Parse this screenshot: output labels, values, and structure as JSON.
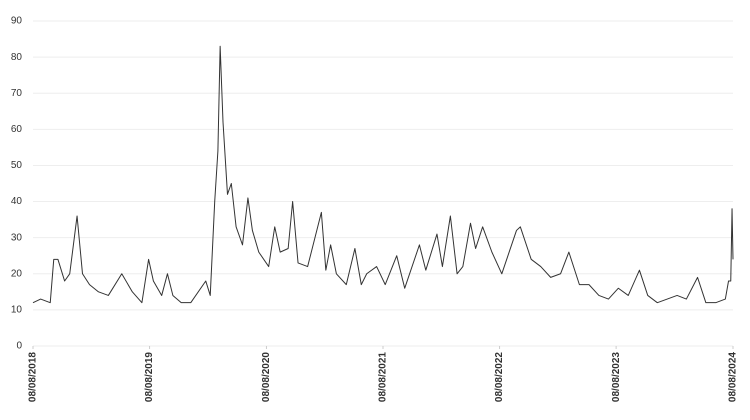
{
  "chart_data": {
    "type": "line",
    "x": [
      "2018-08-08",
      "2018-09-01",
      "2018-10-01",
      "2018-10-12",
      "2018-10-25",
      "2018-11-15",
      "2018-12-01",
      "2018-12-24",
      "2019-01-10",
      "2019-02-01",
      "2019-03-01",
      "2019-04-01",
      "2019-05-13",
      "2019-06-15",
      "2019-07-15",
      "2019-08-05",
      "2019-08-20",
      "2019-09-15",
      "2019-10-03",
      "2019-10-20",
      "2019-11-15",
      "2019-12-15",
      "2020-01-31",
      "2020-02-14",
      "2020-02-28",
      "2020-03-09",
      "2020-03-16",
      "2020-03-25",
      "2020-04-08",
      "2020-04-20",
      "2020-05-05",
      "2020-05-25",
      "2020-06-11",
      "2020-06-25",
      "2020-07-15",
      "2020-08-15",
      "2020-09-03",
      "2020-09-20",
      "2020-10-15",
      "2020-10-29",
      "2020-11-15",
      "2020-12-15",
      "2021-01-27",
      "2021-02-10",
      "2021-02-25",
      "2021-03-15",
      "2021-04-15",
      "2021-05-12",
      "2021-06-01",
      "2021-06-18",
      "2021-07-19",
      "2021-08-15",
      "2021-09-20",
      "2021-10-15",
      "2021-11-30",
      "2021-12-20",
      "2022-01-24",
      "2022-02-10",
      "2022-03-07",
      "2022-03-28",
      "2022-04-15",
      "2022-05-09",
      "2022-05-25",
      "2022-06-16",
      "2022-07-15",
      "2022-08-15",
      "2022-09-30",
      "2022-10-12",
      "2022-11-15",
      "2022-12-15",
      "2023-01-15",
      "2023-02-15",
      "2023-03-13",
      "2023-04-15",
      "2023-05-15",
      "2023-06-15",
      "2023-07-15",
      "2023-08-15",
      "2023-09-15",
      "2023-10-20",
      "2023-11-15",
      "2023-12-15",
      "2024-01-15",
      "2024-02-15",
      "2024-03-15",
      "2024-04-19",
      "2024-05-15",
      "2024-06-15",
      "2024-07-15",
      "2024-07-25",
      "2024-08-01",
      "2024-08-05",
      "2024-08-08"
    ],
    "series": [
      {
        "color": "#333333",
        "values": [
          12,
          13,
          12,
          24,
          24,
          18,
          20,
          36,
          20,
          17,
          15,
          14,
          20,
          15,
          12,
          24,
          18,
          14,
          20,
          14,
          12,
          12,
          18,
          14,
          40,
          54,
          83,
          62,
          42,
          45,
          33,
          28,
          41,
          32,
          26,
          22,
          33,
          26,
          27,
          40,
          23,
          22,
          37,
          21,
          28,
          20,
          17,
          27,
          17,
          20,
          22,
          17,
          25,
          16,
          28,
          21,
          31,
          22,
          36,
          20,
          22,
          34,
          27,
          33,
          26,
          20,
          32,
          33,
          24,
          22,
          19,
          20,
          26,
          17,
          17,
          14,
          13,
          16,
          14,
          21,
          14,
          12,
          13,
          14,
          13,
          19,
          12,
          12,
          13,
          18,
          18,
          38,
          24
        ]
      }
    ],
    "ylim": [
      0,
      90
    ],
    "yticks": [
      0,
      10,
      20,
      30,
      40,
      50,
      60,
      70,
      80,
      90
    ],
    "xlim": [
      "2018-08-08",
      "2024-08-08"
    ],
    "xticks": [
      {
        "value": "2018-08-08",
        "label": "08/08/2018"
      },
      {
        "value": "2019-08-08",
        "label": "08/08/2019"
      },
      {
        "value": "2020-08-08",
        "label": "08/08/2020"
      },
      {
        "value": "2021-08-08",
        "label": "08/08/2021"
      },
      {
        "value": "2022-08-08",
        "label": "08/08/2022"
      },
      {
        "value": "2023-08-08",
        "label": "08/08/2023"
      },
      {
        "value": "2024-08-08",
        "label": "08/08/2024"
      }
    ],
    "grid": true
  }
}
